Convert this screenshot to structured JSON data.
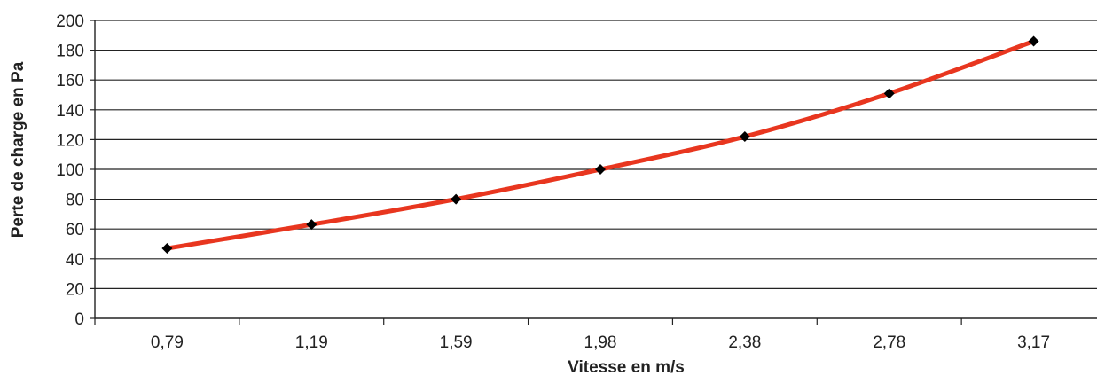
{
  "chart_data": {
    "type": "line",
    "title": "",
    "xlabel": "Vitesse en m/s",
    "ylabel": "Perte de charge en Pa",
    "categories": [
      "0,79",
      "1,19",
      "1,59",
      "1,98",
      "2,38",
      "2,78",
      "3,17"
    ],
    "series": [
      {
        "values": [
          47,
          63,
          80,
          100,
          122,
          151,
          186
        ]
      }
    ],
    "ylim": [
      0,
      200
    ],
    "yticks": [
      0,
      20,
      40,
      60,
      80,
      100,
      120,
      140,
      160,
      180,
      200
    ],
    "grid": "horizontal",
    "legend": "none",
    "colors": {
      "line": "#e8361f",
      "marker": "#000000",
      "grid": "#222222",
      "text": "#222222"
    }
  }
}
